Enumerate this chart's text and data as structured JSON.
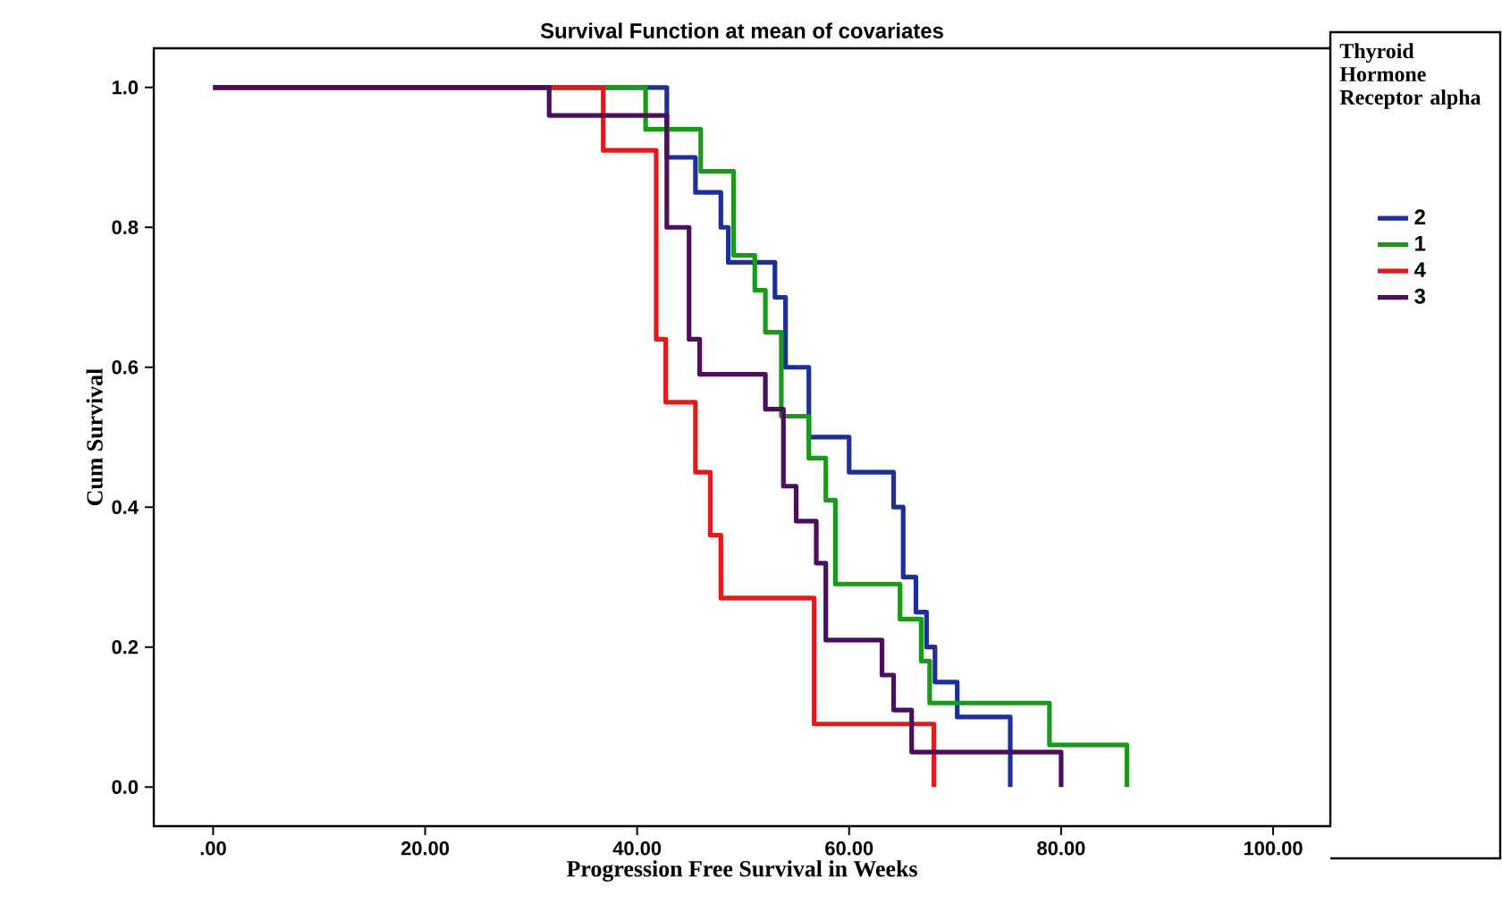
{
  "chart_data": {
    "type": "step",
    "title": "Survival Function at mean of covariates",
    "xlabel": "Progression Free Survival in Weeks",
    "ylabel": "Cum Survival",
    "legend_title": "Thyroid Hormone Receptor alpha",
    "legend": "right",
    "xlim": [
      -5.6,
      105.4
    ],
    "ylim": [
      -0.056,
      1.056
    ],
    "xticks": [
      {
        "value": 0,
        "label": ".00"
      },
      {
        "value": 20,
        "label": "20.00"
      },
      {
        "value": 40,
        "label": "40.00"
      },
      {
        "value": 60,
        "label": "60.00"
      },
      {
        "value": 80,
        "label": "80.00"
      },
      {
        "value": 100,
        "label": "100.00"
      }
    ],
    "yticks": [
      {
        "value": 0,
        "label": "0.0"
      },
      {
        "value": 0.2,
        "label": "0.2"
      },
      {
        "value": 0.4,
        "label": "0.4"
      },
      {
        "value": 0.6,
        "label": "0.6"
      },
      {
        "value": 0.8,
        "label": "0.8"
      },
      {
        "value": 1,
        "label": "1.0"
      }
    ],
    "series": [
      {
        "name": "2",
        "color": "#1f2f9a",
        "x": [
          0,
          42.8,
          45.5,
          47.9,
          48.6,
          53.0,
          54.0,
          56.2,
          60.0,
          64.2,
          65.1,
          66.3,
          67.3,
          68.1,
          70.2,
          75.2
        ],
        "values": [
          1,
          0.9,
          0.85,
          0.8,
          0.75,
          0.7,
          0.6,
          0.5,
          0.45,
          0.4,
          0.3,
          0.25,
          0.2,
          0.15,
          0.1,
          0
        ]
      },
      {
        "name": "1",
        "color": "#1a9a1a",
        "x": [
          0,
          40.8,
          46.0,
          49.1,
          51.1,
          52.1,
          53.6,
          56.2,
          57.8,
          58.7,
          64.8,
          66.8,
          67.6,
          78.9,
          86.2
        ],
        "values": [
          1,
          0.94,
          0.88,
          0.76,
          0.71,
          0.65,
          0.53,
          0.47,
          0.41,
          0.29,
          0.24,
          0.18,
          0.12,
          0.06,
          0
        ]
      },
      {
        "name": "4",
        "color": "#e31a1c",
        "x": [
          0,
          36.8,
          41.8,
          42.7,
          45.5,
          46.9,
          47.9,
          56.7,
          68.0
        ],
        "values": [
          1,
          0.91,
          0.64,
          0.55,
          0.45,
          0.36,
          0.27,
          0.09,
          0
        ]
      },
      {
        "name": "3",
        "color": "#4b0f5c",
        "x": [
          0,
          31.7,
          42.8,
          44.9,
          45.9,
          52.1,
          53.8,
          55.0,
          56.9,
          57.8,
          63.1,
          64.2,
          65.9,
          80.0
        ],
        "values": [
          1,
          0.96,
          0.8,
          0.64,
          0.59,
          0.54,
          0.43,
          0.38,
          0.32,
          0.21,
          0.16,
          0.11,
          0.05,
          0
        ]
      }
    ]
  }
}
